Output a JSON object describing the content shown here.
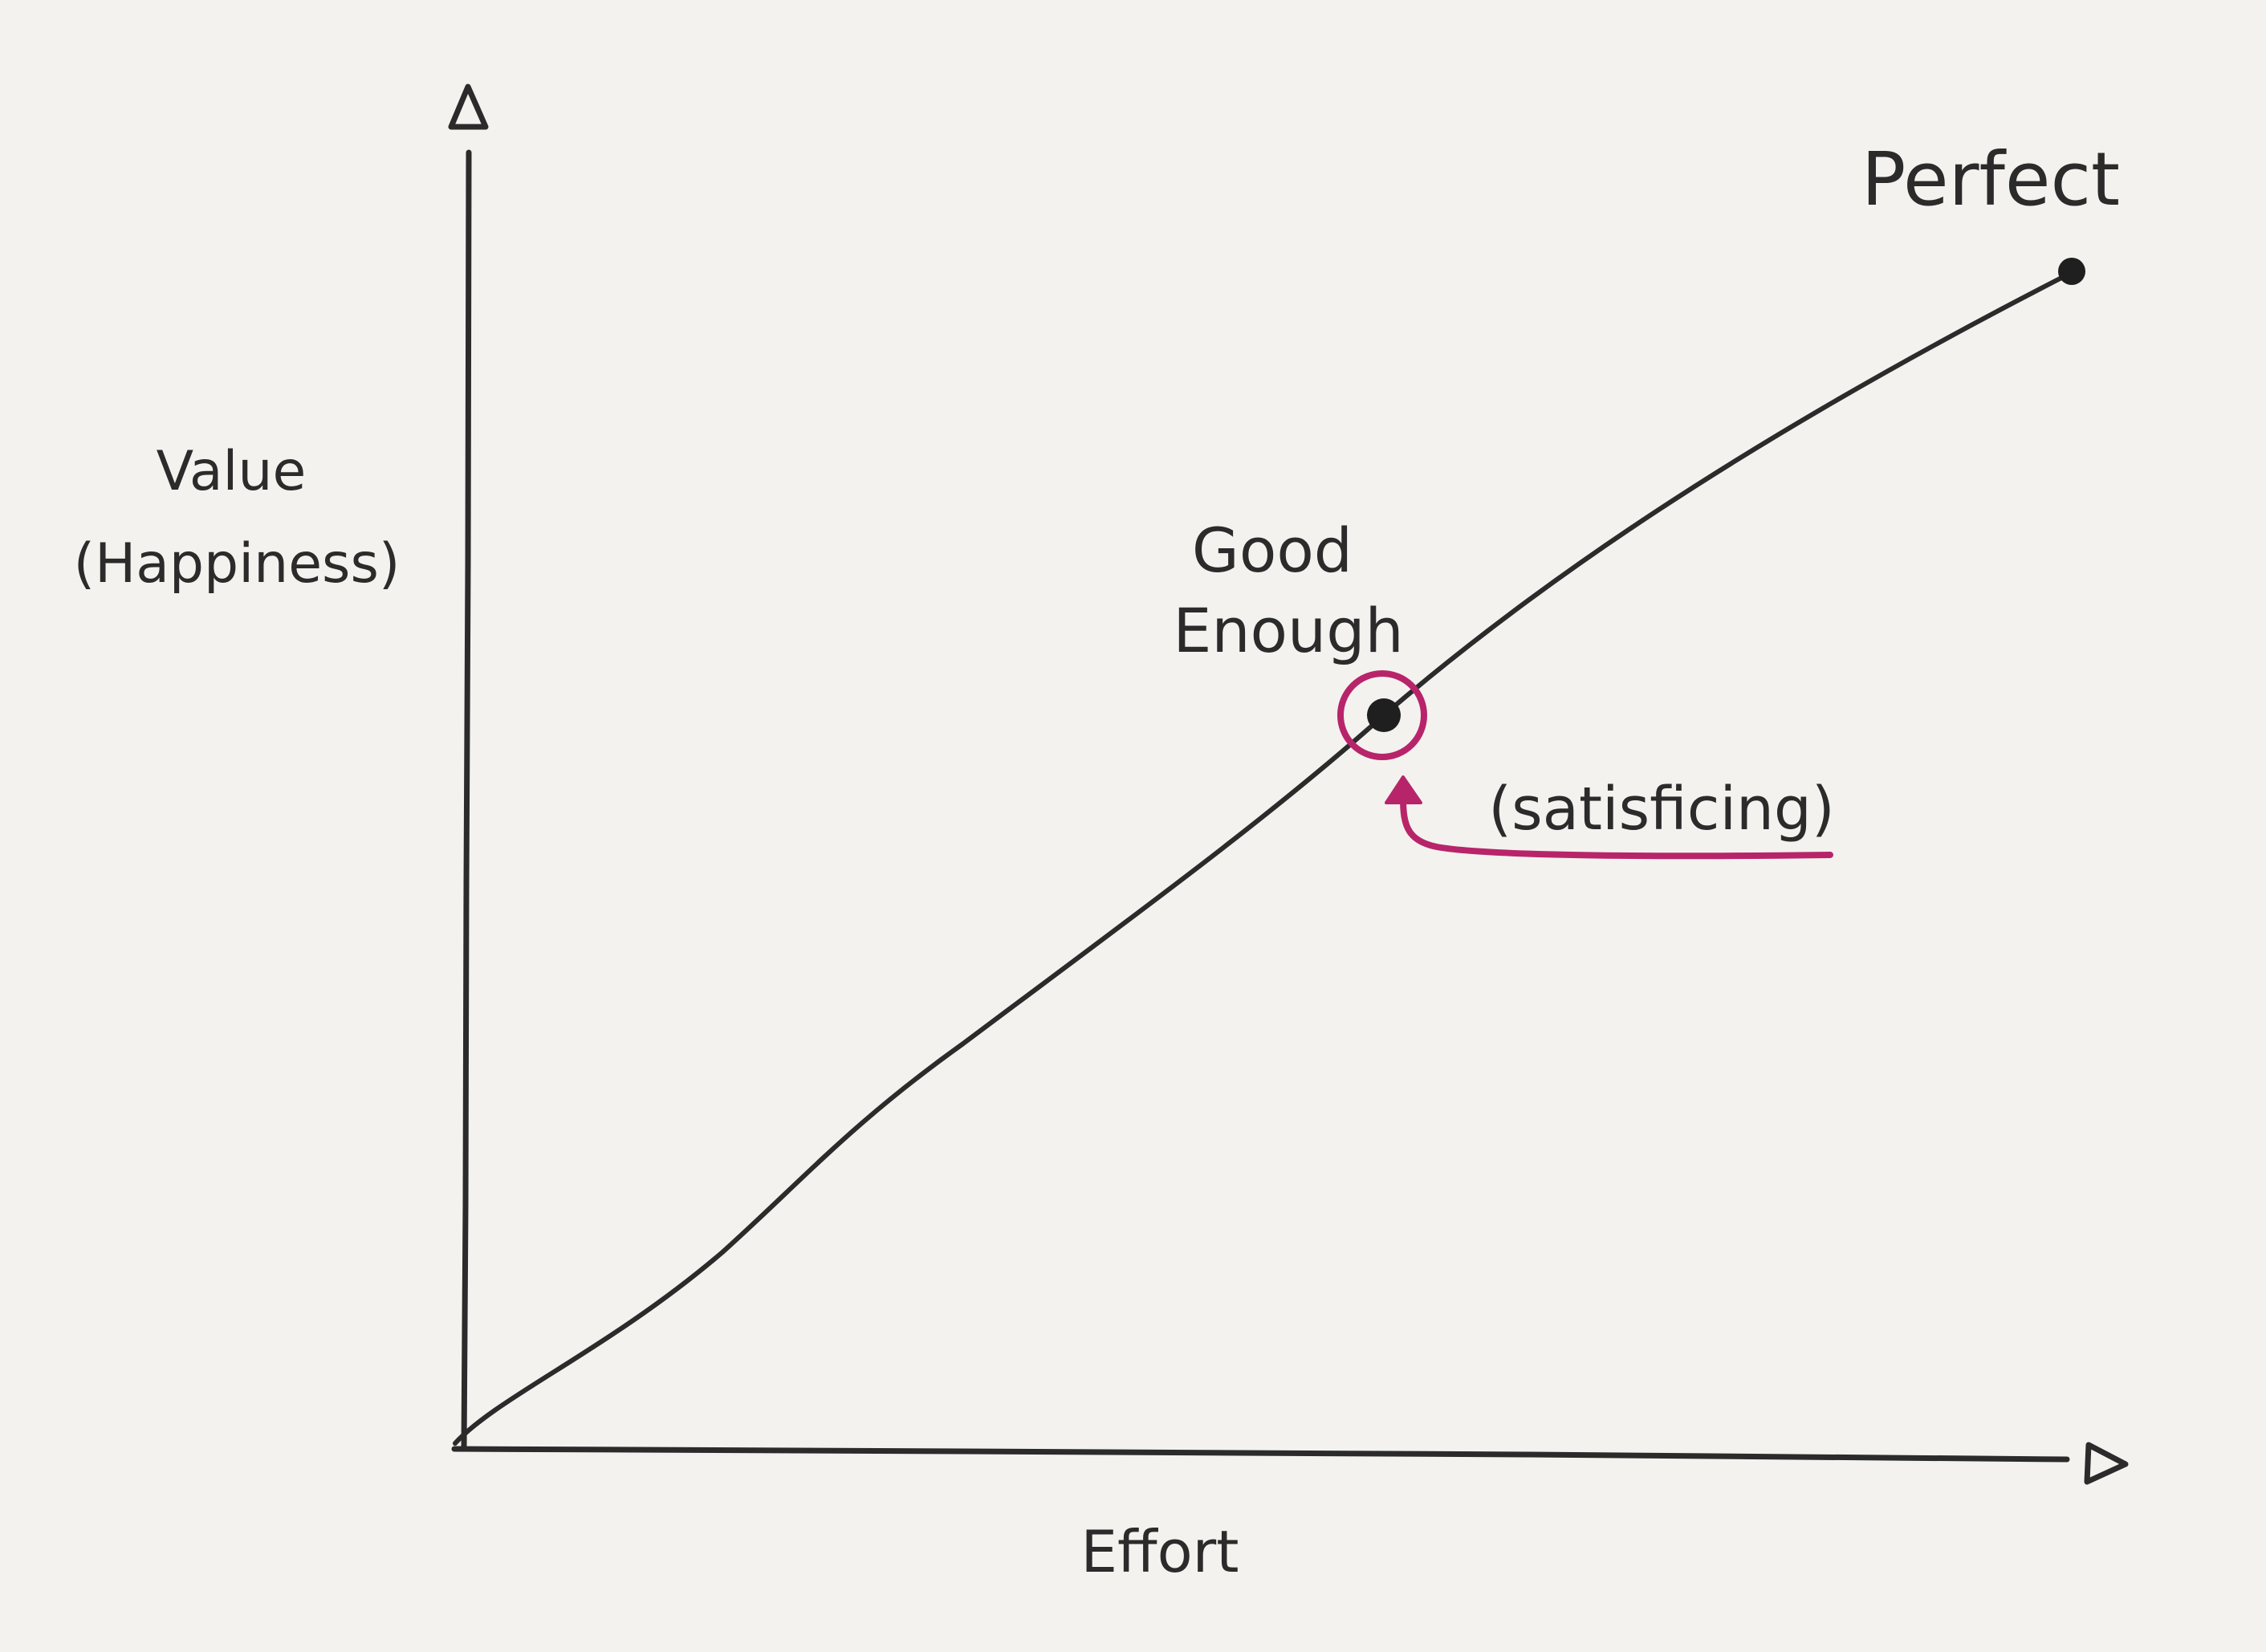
{
  "diagram": {
    "y_axis_label_line1": "Value",
    "y_axis_label_line2": "(Happiness)",
    "x_axis_label": "Effort",
    "endpoint_label": "Perfect",
    "midpoint_label_line1": "Good",
    "midpoint_label_line2": "Enough",
    "annotation_label": "(satisficing)"
  },
  "colors": {
    "ink": "#2b2b2b",
    "highlight": "#b8246a",
    "paper": "#f3f2ee"
  }
}
